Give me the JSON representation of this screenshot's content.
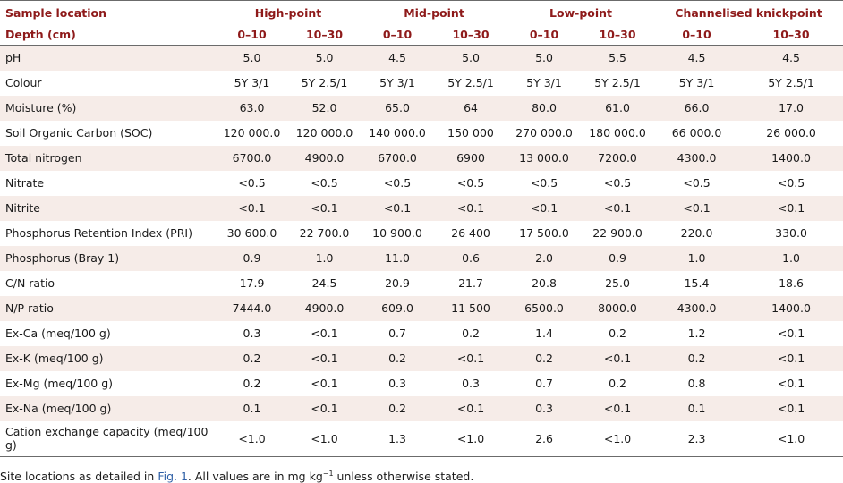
{
  "header": {
    "sample_location_label": "Sample location",
    "depth_label": "Depth (cm)",
    "groups": [
      "High-point",
      "Mid-point",
      "Low-point",
      "Channelised knickpoint"
    ],
    "depths": [
      "0–10",
      "10–30",
      "0–10",
      "10–30",
      "0–10",
      "10–30",
      "0–10",
      "10–30"
    ]
  },
  "rows": [
    {
      "label": "pH",
      "values": [
        "5.0",
        "5.0",
        "4.5",
        "5.0",
        "5.0",
        "5.5",
        "4.5",
        "4.5"
      ]
    },
    {
      "label": "Colour",
      "values": [
        "5Y 3/1",
        "5Y 2.5/1",
        "5Y 3/1",
        "5Y 2.5/1",
        "5Y 3/1",
        "5Y 2.5/1",
        "5Y 3/1",
        "5Y 2.5/1"
      ]
    },
    {
      "label": "Moisture (%)",
      "values": [
        "63.0",
        "52.0",
        "65.0",
        "64",
        "80.0",
        "61.0",
        "66.0",
        "17.0"
      ]
    },
    {
      "label": "Soil Organic Carbon (SOC)",
      "values": [
        "120 000.0",
        "120 000.0",
        "140 000.0",
        "150 000",
        "270 000.0",
        "180 000.0",
        "66 000.0",
        "26 000.0"
      ]
    },
    {
      "label": "Total nitrogen",
      "values": [
        "6700.0",
        "4900.0",
        "6700.0",
        "6900",
        "13 000.0",
        "7200.0",
        "4300.0",
        "1400.0"
      ]
    },
    {
      "label": "Nitrate",
      "values": [
        "<0.5",
        "<0.5",
        "<0.5",
        "<0.5",
        "<0.5",
        "<0.5",
        "<0.5",
        "<0.5"
      ]
    },
    {
      "label": "Nitrite",
      "values": [
        "<0.1",
        "<0.1",
        "<0.1",
        "<0.1",
        "<0.1",
        "<0.1",
        "<0.1",
        "<0.1"
      ]
    },
    {
      "label": "Phosphorus Retention Index (PRI)",
      "values": [
        "30 600.0",
        "22 700.0",
        "10 900.0",
        "26 400",
        "17 500.0",
        "22 900.0",
        "220.0",
        "330.0"
      ]
    },
    {
      "label": "Phosphorus (Bray 1)",
      "values": [
        "0.9",
        "1.0",
        "11.0",
        "0.6",
        "2.0",
        "0.9",
        "1.0",
        "1.0"
      ]
    },
    {
      "label": "C/N ratio",
      "values": [
        "17.9",
        "24.5",
        "20.9",
        "21.7",
        "20.8",
        "25.0",
        "15.4",
        "18.6"
      ]
    },
    {
      "label": "N/P ratio",
      "values": [
        "7444.0",
        "4900.0",
        "609.0",
        "11 500",
        "6500.0",
        "8000.0",
        "4300.0",
        "1400.0"
      ]
    },
    {
      "label": "Ex-Ca (meq/100 g)",
      "values": [
        "0.3",
        "<0.1",
        "0.7",
        "0.2",
        "1.4",
        "0.2",
        "1.2",
        "<0.1"
      ]
    },
    {
      "label": "Ex-K (meq/100 g)",
      "values": [
        "0.2",
        "<0.1",
        "0.2",
        "<0.1",
        "0.2",
        "<0.1",
        "0.2",
        "<0.1"
      ]
    },
    {
      "label": "Ex-Mg (meq/100 g)",
      "values": [
        "0.2",
        "<0.1",
        "0.3",
        "0.3",
        "0.7",
        "0.2",
        "0.8",
        "<0.1"
      ]
    },
    {
      "label": "Ex-Na (meq/100 g)",
      "values": [
        "0.1",
        "<0.1",
        "0.2",
        "<0.1",
        "0.3",
        "<0.1",
        "0.1",
        "<0.1"
      ]
    },
    {
      "label": "Cation exchange capacity (meq/100 g)",
      "values": [
        "<1.0",
        "<1.0",
        "1.3",
        "<1.0",
        "2.6",
        "<1.0",
        "2.3",
        "<1.0"
      ]
    }
  ],
  "footnote": {
    "before": "Site locations as detailed in ",
    "link": "Fig. 1",
    "after": ". All values are in mg kg",
    "sup": "−1",
    "end": " unless otherwise stated."
  },
  "colors": {
    "header_text": "#8e1a1a",
    "stripe": "#f6ece8",
    "link": "#2e5fa6"
  }
}
